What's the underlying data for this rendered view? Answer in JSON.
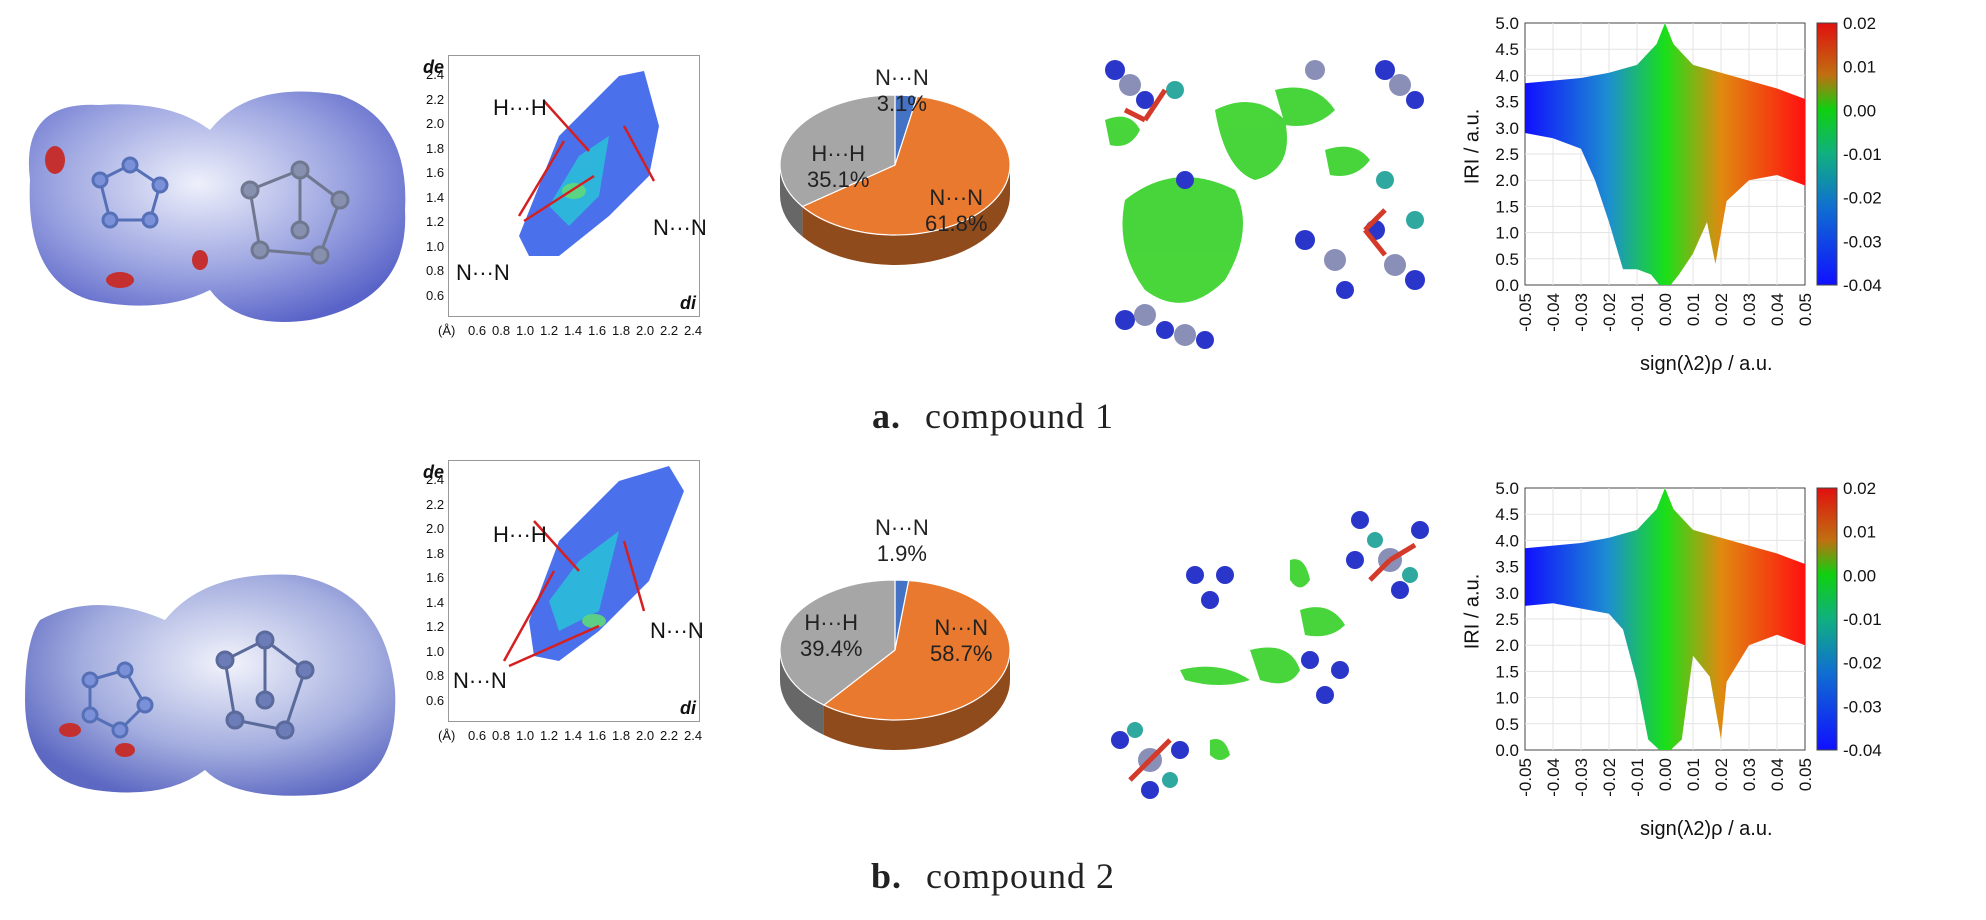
{
  "figure": {
    "rows": [
      {
        "caption_letter": "a.",
        "caption_text": "compound 1",
        "fingerprint": {
          "ylabel": "de",
          "xlabel": "di",
          "unit": "(Å)",
          "yticks": [
            "2.4",
            "2.2",
            "2.0",
            "1.8",
            "1.6",
            "1.4",
            "1.2",
            "1.0",
            "0.8",
            "0.6"
          ],
          "xticks": [
            "0.6",
            "0.8",
            "1.0",
            "1.2",
            "1.4",
            "1.6",
            "1.8",
            "2.0",
            "2.2",
            "2.4"
          ],
          "annotations": [
            "H···H",
            "N···N",
            "N···N"
          ]
        },
        "pie": {
          "slices": [
            {
              "name": "N···N",
              "value": 61.8,
              "label": "61.8%",
              "color": "#e8792e"
            },
            {
              "name": "H···H",
              "value": 35.1,
              "label": "35.1%",
              "color": "#a6a6a6"
            },
            {
              "name": "N···N",
              "value": 3.1,
              "label": "3.1%",
              "color": "#4472c4"
            }
          ]
        },
        "iri": {
          "ylabel": "IRI / a.u.",
          "xlabel": "sign(λ2)ρ / a.u.",
          "yticks": [
            "5.0",
            "4.5",
            "4.0",
            "3.5",
            "3.0",
            "2.5",
            "2.0",
            "1.5",
            "1.0",
            "0.5",
            "0.0"
          ],
          "xticks": [
            "-0.05",
            "-0.04",
            "-0.03",
            "-0.02",
            "-0.01",
            "0.00",
            "0.01",
            "0.02",
            "0.03",
            "0.04",
            "0.05"
          ],
          "colorbar": [
            "0.02",
            "0.01",
            "0.00",
            "-0.01",
            "-0.02",
            "-0.03",
            "-0.04"
          ]
        }
      },
      {
        "caption_letter": "b.",
        "caption_text": "compound 2",
        "fingerprint": {
          "ylabel": "de",
          "xlabel": "di",
          "unit": "(Å)",
          "yticks": [
            "2.4",
            "2.2",
            "2.0",
            "1.8",
            "1.6",
            "1.4",
            "1.2",
            "1.0",
            "0.8",
            "0.6"
          ],
          "xticks": [
            "0.6",
            "0.8",
            "1.0",
            "1.2",
            "1.4",
            "1.6",
            "1.8",
            "2.0",
            "2.2",
            "2.4"
          ],
          "annotations": [
            "H···H",
            "N···N",
            "N···N"
          ]
        },
        "pie": {
          "slices": [
            {
              "name": "N···N",
              "value": 58.7,
              "label": "58.7%",
              "color": "#e8792e"
            },
            {
              "name": "H···H",
              "value": 39.4,
              "label": "39.4%",
              "color": "#a6a6a6"
            },
            {
              "name": "N···N",
              "value": 1.9,
              "label": "1.9%",
              "color": "#4472c4"
            }
          ]
        },
        "iri": {
          "ylabel": "IRI / a.u.",
          "xlabel": "sign(λ2)ρ / a.u.",
          "yticks": [
            "5.0",
            "4.5",
            "4.0",
            "3.5",
            "3.0",
            "2.5",
            "2.0",
            "1.5",
            "1.0",
            "0.5",
            "0.0"
          ],
          "xticks": [
            "-0.05",
            "-0.04",
            "-0.03",
            "-0.02",
            "-0.01",
            "0.00",
            "0.01",
            "0.02",
            "0.03",
            "0.04",
            "0.05"
          ],
          "colorbar": [
            "0.02",
            "0.01",
            "0.00",
            "-0.01",
            "-0.02",
            "-0.03",
            "-0.04"
          ]
        }
      }
    ]
  },
  "chart_data": [
    {
      "type": "pie",
      "categories": [
        "N···N",
        "H···H",
        "N···N"
      ],
      "values": [
        61.8,
        35.1,
        3.1
      ],
      "colors": [
        "#e8792e",
        "#a6a6a6",
        "#4472c4"
      ]
    },
    {
      "type": "pie",
      "categories": [
        "N···N",
        "H···H",
        "N···N"
      ],
      "values": [
        58.7,
        39.4,
        1.9
      ],
      "colors": [
        "#e8792e",
        "#a6a6a6",
        "#4472c4"
      ]
    },
    {
      "type": "scatter",
      "xlabel": "sign(λ2)ρ / a.u.",
      "ylabel": "IRI / a.u.",
      "xlim": [
        -0.05,
        0.05
      ],
      "ylim": [
        0,
        5
      ],
      "colorbar_range": [
        -0.04,
        0.02
      ]
    },
    {
      "type": "scatter",
      "xlabel": "sign(λ2)ρ / a.u.",
      "ylabel": "IRI / a.u.",
      "xlim": [
        -0.05,
        0.05
      ],
      "ylim": [
        0,
        5
      ],
      "colorbar_range": [
        -0.04,
        0.02
      ]
    }
  ]
}
